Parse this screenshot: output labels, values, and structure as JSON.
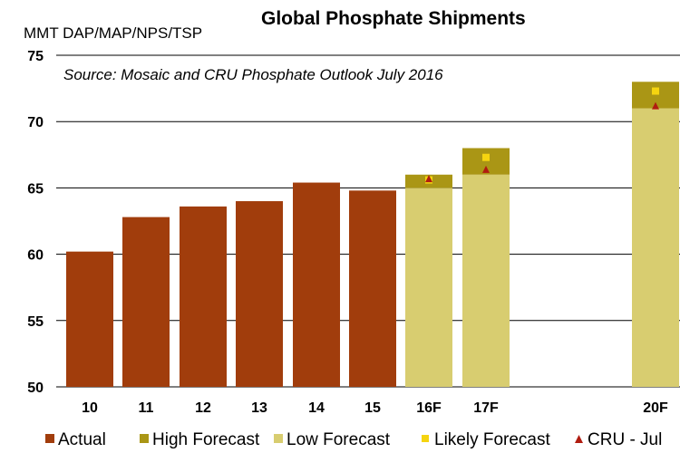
{
  "chart_data": {
    "type": "bar",
    "title": "Global Phosphate Shipments",
    "ylabel": "MMT DAP/MAP/NPS/TSP",
    "source_note": "Source:  Mosaic and CRU Phosphate Outlook July 2016",
    "ylim": [
      50,
      75
    ],
    "yticks": [
      "50",
      "55",
      "60",
      "65",
      "70",
      "75"
    ],
    "categories": [
      "10",
      "11",
      "12",
      "13",
      "14",
      "15",
      "16F",
      "17F",
      "20F"
    ],
    "actual": [
      60.2,
      62.8,
      63.6,
      64.0,
      65.4,
      64.8,
      null,
      null,
      null
    ],
    "low_forecast": [
      null,
      null,
      null,
      null,
      null,
      null,
      65.0,
      66.0,
      71.0
    ],
    "high_forecast": [
      null,
      null,
      null,
      null,
      null,
      null,
      66.0,
      68.0,
      73.0
    ],
    "likely_forecast": [
      null,
      null,
      null,
      null,
      null,
      null,
      65.6,
      67.3,
      72.3
    ],
    "cru_july": [
      null,
      null,
      null,
      null,
      null,
      null,
      65.7,
      66.4,
      71.2
    ],
    "legend": [
      {
        "key": "actual",
        "label": "Actual"
      },
      {
        "key": "high",
        "label": "High Forecast"
      },
      {
        "key": "low",
        "label": "Low Forecast"
      },
      {
        "key": "likely",
        "label": "Likely Forecast"
      },
      {
        "key": "cru",
        "label": "CRU - Jul"
      }
    ],
    "colors": {
      "actual": "#a13d0c",
      "high": "#aa9615",
      "low": "#d8cd70",
      "likely": "#f5d410",
      "cru": "#b01c10",
      "grid": "#000000"
    }
  }
}
